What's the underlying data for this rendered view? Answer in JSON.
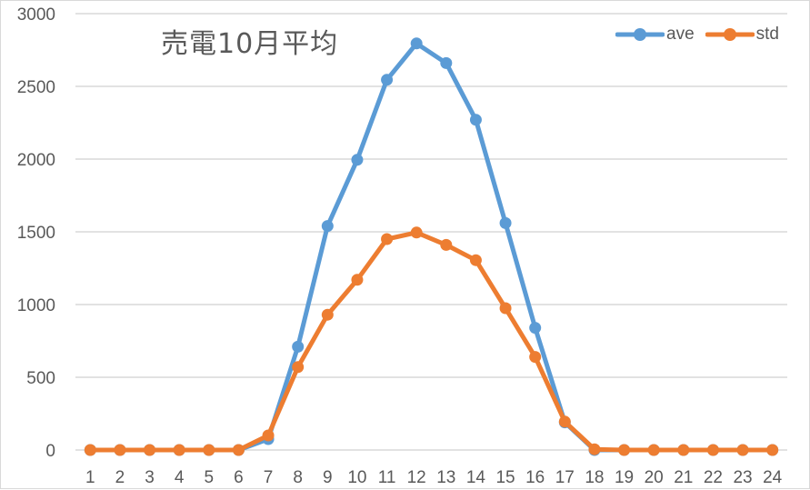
{
  "chart_data": {
    "type": "line",
    "title": "売電10月平均",
    "xlabel": "",
    "ylabel": "",
    "ylim": [
      0,
      3000
    ],
    "yticks": [
      0,
      500,
      1000,
      1500,
      2000,
      2500,
      3000
    ],
    "grid": true,
    "legend_position": "top-right",
    "categories": [
      "1",
      "2",
      "3",
      "4",
      "5",
      "6",
      "7",
      "8",
      "9",
      "10",
      "11",
      "12",
      "13",
      "14",
      "15",
      "16",
      "17",
      "18",
      "19",
      "20",
      "21",
      "22",
      "23",
      "24"
    ],
    "series": [
      {
        "name": "ave",
        "color": "#5B9BD5",
        "values": [
          0,
          0,
          0,
          0,
          0,
          0,
          75,
          710,
          1540,
          1995,
          2545,
          2795,
          2660,
          2270,
          1560,
          840,
          190,
          0,
          0,
          0,
          0,
          0,
          0,
          0
        ]
      },
      {
        "name": "std",
        "color": "#ED7D31",
        "values": [
          0,
          0,
          0,
          0,
          0,
          0,
          100,
          570,
          930,
          1170,
          1450,
          1495,
          1410,
          1305,
          975,
          640,
          195,
          5,
          0,
          0,
          0,
          0,
          0,
          0
        ]
      }
    ]
  },
  "legend": {
    "items": [
      {
        "label": "ave",
        "color": "#5B9BD5"
      },
      {
        "label": "std",
        "color": "#ED7D31"
      }
    ]
  }
}
